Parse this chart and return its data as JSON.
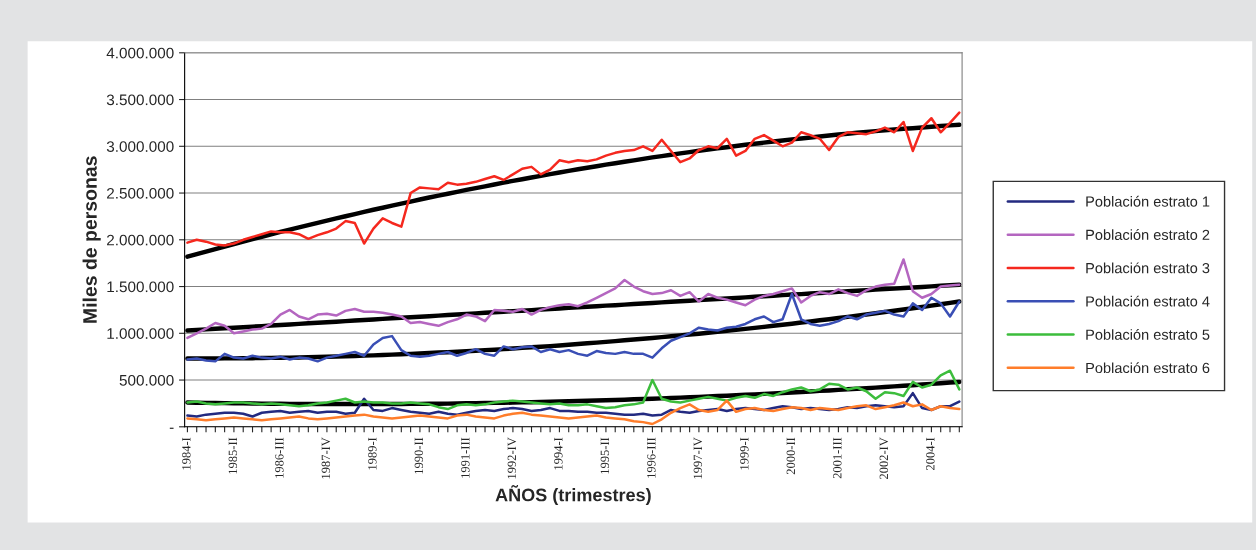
{
  "chart_data": {
    "type": "line",
    "xlabel": "AÑOS (trimestres)",
    "ylabel": "Miles de personas",
    "categories": [
      "1984-I",
      null,
      null,
      null,
      null,
      "1985-II",
      null,
      null,
      null,
      null,
      "1986-III",
      null,
      null,
      null,
      null,
      "1987-IV",
      null,
      null,
      null,
      null,
      "1989-I",
      null,
      null,
      null,
      null,
      "1990-II",
      null,
      null,
      null,
      null,
      "1991-III",
      null,
      null,
      null,
      null,
      "1992-IV",
      null,
      null,
      null,
      null,
      "1994-I",
      null,
      null,
      null,
      null,
      "1995-II",
      null,
      null,
      null,
      null,
      "1996-III",
      null,
      null,
      null,
      null,
      "1997-IV",
      null,
      null,
      null,
      null,
      "1999-I",
      null,
      null,
      null,
      null,
      "2000-II",
      null,
      null,
      null,
      null,
      "2001-III",
      null,
      null,
      null,
      null,
      "2002-IV",
      null,
      null,
      null,
      null,
      "2004-I",
      null,
      null,
      null
    ],
    "ylim": [
      0,
      4000000
    ],
    "yticks": [
      {
        "value": 0,
        "label": "-"
      },
      {
        "value": 500000,
        "label": "500.000"
      },
      {
        "value": 1000000,
        "label": "1.000.000"
      },
      {
        "value": 1500000,
        "label": "1.500.000"
      },
      {
        "value": 2000000,
        "label": "2.000.000"
      },
      {
        "value": 2500000,
        "label": "2.500.000"
      },
      {
        "value": 3000000,
        "label": "3.000.000"
      },
      {
        "value": 3500000,
        "label": "3.500.000"
      },
      {
        "value": 4000000,
        "label": "4.000.000"
      }
    ],
    "grid": "y",
    "legend": "right",
    "series": [
      {
        "name": "Población estrato 1",
        "color": "#232a80",
        "values": [
          120000,
          110000,
          130000,
          140000,
          150000,
          150000,
          140000,
          110000,
          150000,
          160000,
          170000,
          150000,
          160000,
          170000,
          150000,
          160000,
          160000,
          140000,
          150000,
          300000,
          180000,
          170000,
          200000,
          180000,
          160000,
          150000,
          140000,
          160000,
          140000,
          130000,
          150000,
          170000,
          180000,
          170000,
          190000,
          200000,
          190000,
          170000,
          180000,
          200000,
          170000,
          170000,
          160000,
          160000,
          150000,
          150000,
          140000,
          130000,
          130000,
          140000,
          120000,
          130000,
          180000,
          160000,
          150000,
          170000,
          180000,
          190000,
          170000,
          190000,
          200000,
          190000,
          180000,
          200000,
          220000,
          210000,
          190000,
          200000,
          190000,
          180000,
          190000,
          210000,
          200000,
          220000,
          230000,
          220000,
          210000,
          220000,
          360000,
          200000,
          180000,
          220000,
          220000,
          270000
        ]
      },
      {
        "name": "Población estrato 2",
        "color": "#b466c0",
        "values": [
          950000,
          1000000,
          1050000,
          1110000,
          1080000,
          1000000,
          1020000,
          1040000,
          1050000,
          1100000,
          1200000,
          1250000,
          1180000,
          1150000,
          1200000,
          1210000,
          1190000,
          1240000,
          1260000,
          1230000,
          1230000,
          1220000,
          1200000,
          1180000,
          1110000,
          1120000,
          1100000,
          1080000,
          1120000,
          1150000,
          1200000,
          1180000,
          1130000,
          1250000,
          1240000,
          1230000,
          1260000,
          1200000,
          1250000,
          1280000,
          1300000,
          1310000,
          1290000,
          1330000,
          1380000,
          1430000,
          1480000,
          1570000,
          1500000,
          1450000,
          1420000,
          1430000,
          1460000,
          1400000,
          1440000,
          1340000,
          1420000,
          1380000,
          1360000,
          1330000,
          1300000,
          1360000,
          1400000,
          1420000,
          1450000,
          1480000,
          1330000,
          1400000,
          1440000,
          1420000,
          1470000,
          1430000,
          1400000,
          1460000,
          1500000,
          1520000,
          1530000,
          1790000,
          1450000,
          1380000,
          1420000,
          1500000,
          1510000,
          1520000
        ]
      },
      {
        "name": "Población estrato 3",
        "color": "#f5281e",
        "values": [
          1970000,
          2000000,
          1980000,
          1950000,
          1940000,
          1960000,
          2000000,
          2030000,
          2060000,
          2090000,
          2080000,
          2080000,
          2060000,
          2010000,
          2050000,
          2080000,
          2120000,
          2200000,
          2180000,
          1960000,
          2120000,
          2230000,
          2180000,
          2140000,
          2500000,
          2560000,
          2550000,
          2540000,
          2610000,
          2590000,
          2600000,
          2620000,
          2650000,
          2680000,
          2640000,
          2700000,
          2760000,
          2780000,
          2700000,
          2750000,
          2850000,
          2830000,
          2850000,
          2840000,
          2860000,
          2900000,
          2930000,
          2950000,
          2960000,
          3000000,
          2950000,
          3070000,
          2950000,
          2830000,
          2870000,
          2960000,
          3000000,
          2980000,
          3080000,
          2900000,
          2950000,
          3080000,
          3120000,
          3060000,
          3000000,
          3040000,
          3150000,
          3120000,
          3080000,
          2960000,
          3100000,
          3150000,
          3140000,
          3130000,
          3160000,
          3200000,
          3150000,
          3260000,
          2950000,
          3200000,
          3300000,
          3150000,
          3250000,
          3360000
        ]
      },
      {
        "name": "Población estrato 4",
        "color": "#3a4fb5",
        "values": [
          720000,
          730000,
          710000,
          700000,
          780000,
          740000,
          730000,
          760000,
          740000,
          730000,
          750000,
          720000,
          740000,
          730000,
          700000,
          740000,
          760000,
          780000,
          800000,
          760000,
          880000,
          950000,
          970000,
          820000,
          760000,
          750000,
          760000,
          780000,
          800000,
          760000,
          790000,
          830000,
          780000,
          760000,
          860000,
          830000,
          850000,
          860000,
          800000,
          830000,
          800000,
          820000,
          780000,
          760000,
          810000,
          790000,
          780000,
          800000,
          780000,
          780000,
          740000,
          840000,
          920000,
          960000,
          1000000,
          1060000,
          1040000,
          1030000,
          1060000,
          1070000,
          1100000,
          1150000,
          1180000,
          1120000,
          1150000,
          1420000,
          1150000,
          1100000,
          1080000,
          1100000,
          1130000,
          1180000,
          1150000,
          1200000,
          1220000,
          1240000,
          1200000,
          1180000,
          1320000,
          1250000,
          1380000,
          1320000,
          1180000,
          1340000
        ]
      },
      {
        "name": "Población estrato 5",
        "color": "#3cbd3c",
        "values": [
          260000,
          270000,
          250000,
          240000,
          250000,
          260000,
          260000,
          250000,
          240000,
          250000,
          240000,
          230000,
          220000,
          230000,
          250000,
          260000,
          280000,
          300000,
          260000,
          270000,
          260000,
          260000,
          250000,
          250000,
          260000,
          250000,
          240000,
          210000,
          190000,
          230000,
          240000,
          230000,
          240000,
          260000,
          270000,
          280000,
          270000,
          260000,
          250000,
          240000,
          250000,
          230000,
          230000,
          240000,
          220000,
          200000,
          210000,
          230000,
          240000,
          260000,
          500000,
          300000,
          270000,
          260000,
          280000,
          300000,
          320000,
          300000,
          280000,
          310000,
          330000,
          310000,
          350000,
          330000,
          370000,
          400000,
          420000,
          380000,
          400000,
          460000,
          450000,
          400000,
          420000,
          380000,
          300000,
          370000,
          360000,
          330000,
          480000,
          420000,
          450000,
          550000,
          600000,
          400000
        ]
      },
      {
        "name": "Población estrato 6",
        "color": "#ff7d2a",
        "values": [
          90000,
          80000,
          70000,
          80000,
          90000,
          100000,
          90000,
          80000,
          70000,
          80000,
          90000,
          100000,
          110000,
          90000,
          80000,
          90000,
          100000,
          110000,
          120000,
          130000,
          110000,
          100000,
          90000,
          100000,
          110000,
          120000,
          110000,
          100000,
          90000,
          120000,
          130000,
          110000,
          100000,
          90000,
          120000,
          140000,
          150000,
          130000,
          120000,
          110000,
          100000,
          90000,
          100000,
          110000,
          120000,
          100000,
          90000,
          80000,
          60000,
          50000,
          30000,
          80000,
          150000,
          200000,
          240000,
          180000,
          160000,
          180000,
          280000,
          160000,
          190000,
          200000,
          180000,
          170000,
          190000,
          210000,
          200000,
          180000,
          200000,
          190000,
          180000,
          200000,
          220000,
          230000,
          190000,
          210000,
          230000,
          260000,
          220000,
          240000,
          180000,
          220000,
          200000,
          190000
        ]
      },
      {
        "color": "#000000",
        "values": [
          1820000,
          1847000,
          1874000,
          1901000,
          1928000,
          1955000,
          1981000,
          2007000,
          2032000,
          2058000,
          2084000,
          2108000,
          2133000,
          2157000,
          2182000,
          2206000,
          2229000,
          2252000,
          2275000,
          2298000,
          2321000,
          2343000,
          2365000,
          2387000,
          2409000,
          2431000,
          2452000,
          2472000,
          2493000,
          2513000,
          2534000,
          2553000,
          2572000,
          2591000,
          2611000,
          2630000,
          2648000,
          2666000,
          2684000,
          2702000,
          2720000,
          2737000,
          2754000,
          2770000,
          2787000,
          2804000,
          2819000,
          2835000,
          2850000,
          2866000,
          2881000,
          2895000,
          2909000,
          2924000,
          2938000,
          2952000,
          2965000,
          2978000,
          2990000,
          3003000,
          3016000,
          3028000,
          3039000,
          3051000,
          3062000,
          3074000,
          3084000,
          3095000,
          3105000,
          3116000,
          3126000,
          3135000,
          3144000,
          3153000,
          3162000,
          3171000,
          3179000,
          3187000,
          3194000,
          3202000,
          3210000,
          3217000,
          3224000,
          3230000
        ]
      },
      {
        "color": "#000000",
        "values": [
          1030000,
          1036000,
          1042000,
          1048000,
          1054000,
          1060000,
          1065000,
          1071000,
          1077000,
          1083000,
          1089000,
          1095000,
          1101000,
          1107000,
          1113000,
          1119000,
          1124000,
          1130000,
          1136000,
          1142000,
          1148000,
          1154000,
          1160000,
          1166000,
          1172000,
          1178000,
          1183000,
          1189000,
          1195000,
          1201000,
          1207000,
          1213000,
          1219000,
          1225000,
          1231000,
          1237000,
          1242000,
          1248000,
          1254000,
          1260000,
          1266000,
          1272000,
          1278000,
          1284000,
          1290000,
          1296000,
          1301000,
          1307000,
          1313000,
          1319000,
          1325000,
          1331000,
          1337000,
          1343000,
          1349000,
          1355000,
          1360000,
          1366000,
          1372000,
          1378000,
          1384000,
          1390000,
          1396000,
          1402000,
          1408000,
          1414000,
          1419000,
          1425000,
          1431000,
          1437000,
          1443000,
          1449000,
          1455000,
          1461000,
          1467000,
          1473000,
          1478000,
          1484000,
          1490000,
          1496000,
          1502000,
          1508000,
          1514000,
          1520000
        ]
      },
      {
        "color": "#000000",
        "values": [
          730000,
          730000,
          731000,
          731000,
          732000,
          732000,
          733000,
          734000,
          736000,
          737000,
          738000,
          740000,
          742000,
          745000,
          747000,
          749000,
          752000,
          755000,
          758000,
          761000,
          764000,
          768000,
          772000,
          776000,
          780000,
          784000,
          789000,
          794000,
          798000,
          803000,
          808000,
          814000,
          820000,
          825000,
          831000,
          837000,
          844000,
          850000,
          857000,
          863000,
          870000,
          878000,
          885000,
          893000,
          900000,
          908000,
          916000,
          925000,
          933000,
          942000,
          950000,
          959000,
          968000,
          978000,
          987000,
          996000,
          1006000,
          1016000,
          1027000,
          1037000,
          1047000,
          1058000,
          1069000,
          1081000,
          1092000,
          1103000,
          1115000,
          1127000,
          1139000,
          1151000,
          1163000,
          1176000,
          1189000,
          1201000,
          1214000,
          1227000,
          1241000,
          1255000,
          1268000,
          1282000,
          1296000,
          1311000,
          1325000,
          1340000
        ]
      },
      {
        "color": "#000000",
        "values": [
          260000,
          258000,
          256000,
          255000,
          253000,
          252000,
          251000,
          249000,
          248000,
          247000,
          246000,
          245000,
          245000,
          244000,
          244000,
          243000,
          243000,
          243000,
          243000,
          243000,
          243000,
          243000,
          244000,
          244000,
          245000,
          245000,
          246000,
          247000,
          248000,
          249000,
          251000,
          253000,
          254000,
          256000,
          257000,
          259000,
          261000,
          263000,
          266000,
          268000,
          270000,
          273000,
          276000,
          278000,
          281000,
          284000,
          287000,
          290000,
          294000,
          297000,
          300000,
          304000,
          308000,
          312000,
          316000,
          320000,
          324000,
          329000,
          333000,
          338000,
          342000,
          347000,
          352000,
          357000,
          362000,
          367000,
          373000,
          378000,
          384000,
          389000,
          395000,
          401000,
          407000,
          413000,
          419000,
          425000,
          432000,
          439000,
          445000,
          452000,
          459000,
          466000,
          473000,
          480000
        ]
      }
    ]
  }
}
